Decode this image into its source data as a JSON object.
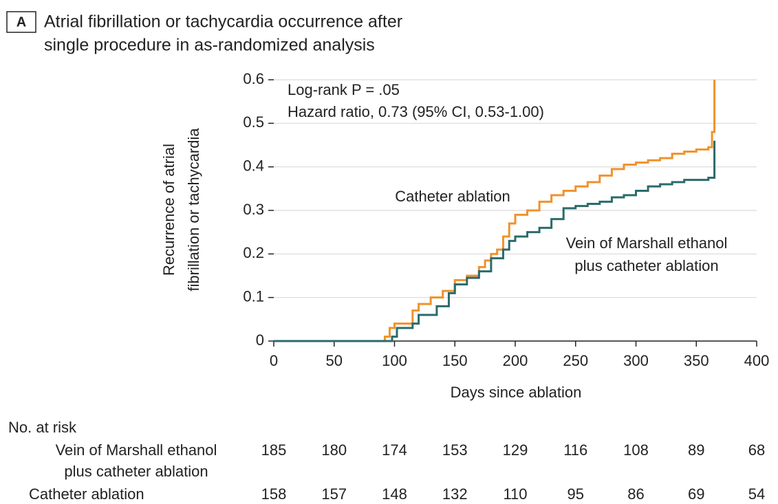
{
  "chart_data": {
    "type": "step",
    "panel": "A",
    "title": [
      "Atrial fibrillation or tachycardia occurrence after",
      "single procedure in as-randomized analysis"
    ],
    "annotations": [
      "Log-rank P = .05",
      "Hazard ratio, 0.73 (95% CI, 0.53-1.00)"
    ],
    "x_label": "Days since ablation",
    "y_label": [
      "Recurrence of atrial",
      "fibrillation or tachycardia"
    ],
    "xlim": [
      0,
      400
    ],
    "xticks": [
      0,
      50,
      100,
      150,
      200,
      250,
      300,
      350,
      400
    ],
    "ylim": [
      0,
      0.6
    ],
    "yticks": [
      0,
      0.1,
      0.2,
      0.3,
      0.4,
      0.5,
      0.6
    ],
    "grid": true,
    "series": [
      {
        "name": "Catheter ablation",
        "color": "#f0922b",
        "x": [
          0,
          88,
          92,
          96,
          100,
          110,
          115,
          120,
          130,
          140,
          150,
          160,
          170,
          175,
          180,
          185,
          190,
          195,
          200,
          210,
          220,
          230,
          240,
          250,
          260,
          270,
          280,
          290,
          300,
          310,
          320,
          330,
          340,
          350,
          360,
          363,
          365
        ],
        "values": [
          0,
          0,
          0.01,
          0.03,
          0.04,
          0.04,
          0.07,
          0.085,
          0.1,
          0.115,
          0.14,
          0.15,
          0.17,
          0.185,
          0.2,
          0.21,
          0.24,
          0.27,
          0.29,
          0.3,
          0.32,
          0.335,
          0.345,
          0.355,
          0.365,
          0.38,
          0.395,
          0.405,
          0.41,
          0.415,
          0.42,
          0.43,
          0.435,
          0.44,
          0.445,
          0.48,
          0.6
        ]
      },
      {
        "name": [
          "Vein of Marshall ethanol",
          "plus catheter ablation"
        ],
        "color": "#2a6b6b",
        "x": [
          0,
          95,
          98,
          102,
          115,
          120,
          135,
          145,
          150,
          160,
          170,
          180,
          190,
          195,
          200,
          210,
          220,
          230,
          240,
          250,
          260,
          270,
          280,
          290,
          300,
          310,
          320,
          330,
          340,
          350,
          360,
          365,
          365
        ],
        "values": [
          0,
          0,
          0.01,
          0.03,
          0.04,
          0.06,
          0.08,
          0.11,
          0.13,
          0.145,
          0.16,
          0.19,
          0.21,
          0.23,
          0.24,
          0.25,
          0.26,
          0.28,
          0.305,
          0.31,
          0.315,
          0.32,
          0.33,
          0.335,
          0.345,
          0.355,
          0.36,
          0.365,
          0.37,
          0.37,
          0.375,
          0.375,
          0.46
        ]
      }
    ],
    "risk_table": {
      "title": "No. at risk",
      "rows": [
        {
          "label": [
            "Vein of Marshall ethanol",
            "plus catheter ablation"
          ],
          "values": [
            185,
            180,
            174,
            153,
            129,
            116,
            108,
            89,
            68
          ]
        },
        {
          "label": [
            "Catheter ablation"
          ],
          "values": [
            158,
            157,
            148,
            132,
            110,
            95,
            86,
            69,
            54
          ]
        }
      ]
    }
  }
}
